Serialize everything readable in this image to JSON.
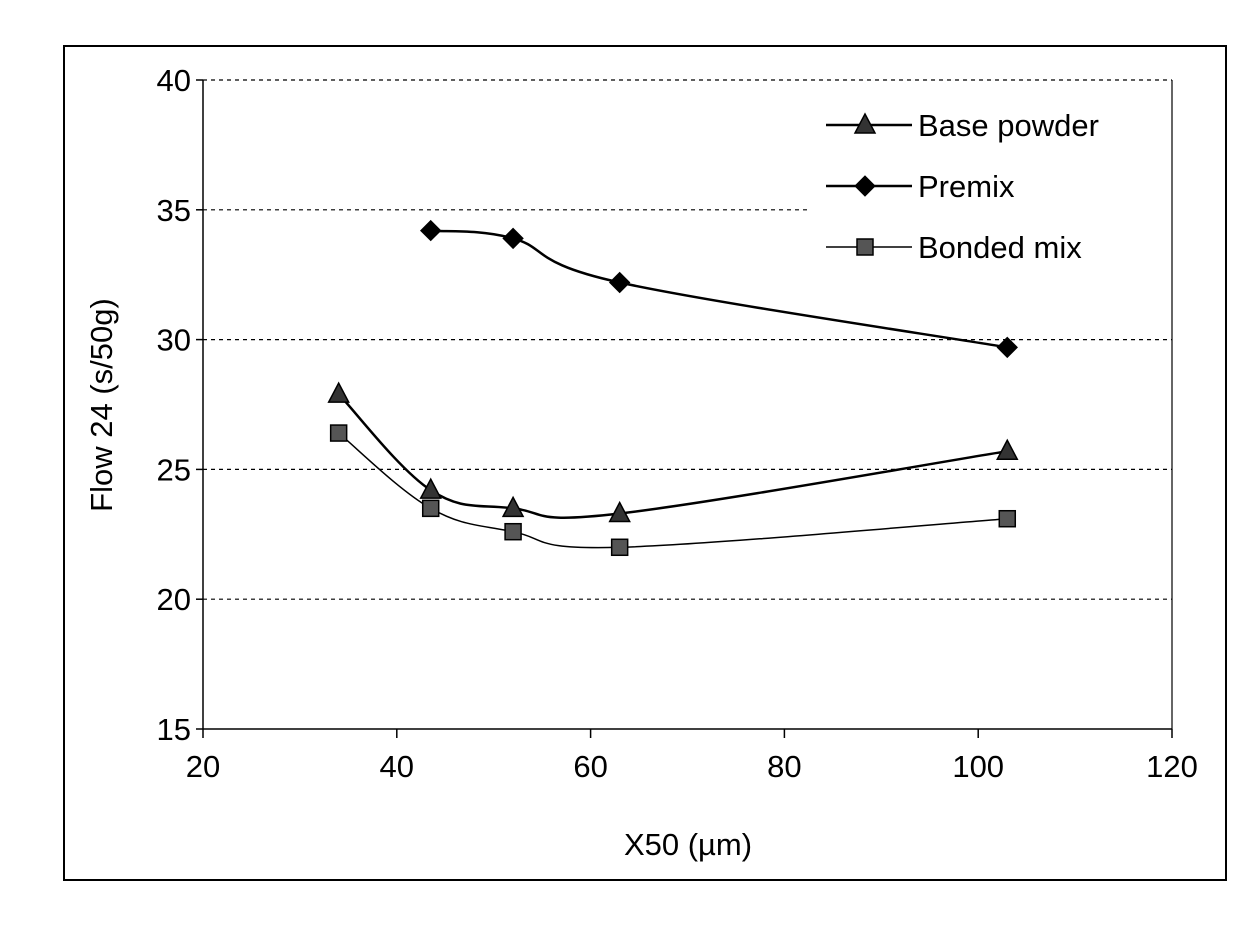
{
  "chart_data": {
    "type": "line",
    "xlabel": "X50 (µm)",
    "ylabel": "Flow 24 (s/50g)",
    "xlim": [
      20,
      120
    ],
    "ylim": [
      15,
      40
    ],
    "x_ticks": [
      20,
      40,
      60,
      80,
      100,
      120
    ],
    "y_ticks": [
      15,
      20,
      25,
      30,
      35,
      40
    ],
    "grid": "horizontal dashed",
    "legend_position": "top-right",
    "series": [
      {
        "name": "Base powder",
        "marker": "triangle",
        "x": [
          34,
          43.5,
          52,
          63,
          103
        ],
        "y": [
          27.9,
          24.2,
          23.5,
          23.3,
          25.7
        ]
      },
      {
        "name": "Premix",
        "marker": "diamond",
        "x": [
          43.5,
          52,
          63,
          103
        ],
        "y": [
          34.2,
          33.9,
          32.2,
          29.7
        ]
      },
      {
        "name": "Bonded mix",
        "marker": "square",
        "x": [
          34,
          43.5,
          52,
          63,
          103
        ],
        "y": [
          26.4,
          23.5,
          22.6,
          22.0,
          23.1
        ]
      }
    ]
  }
}
